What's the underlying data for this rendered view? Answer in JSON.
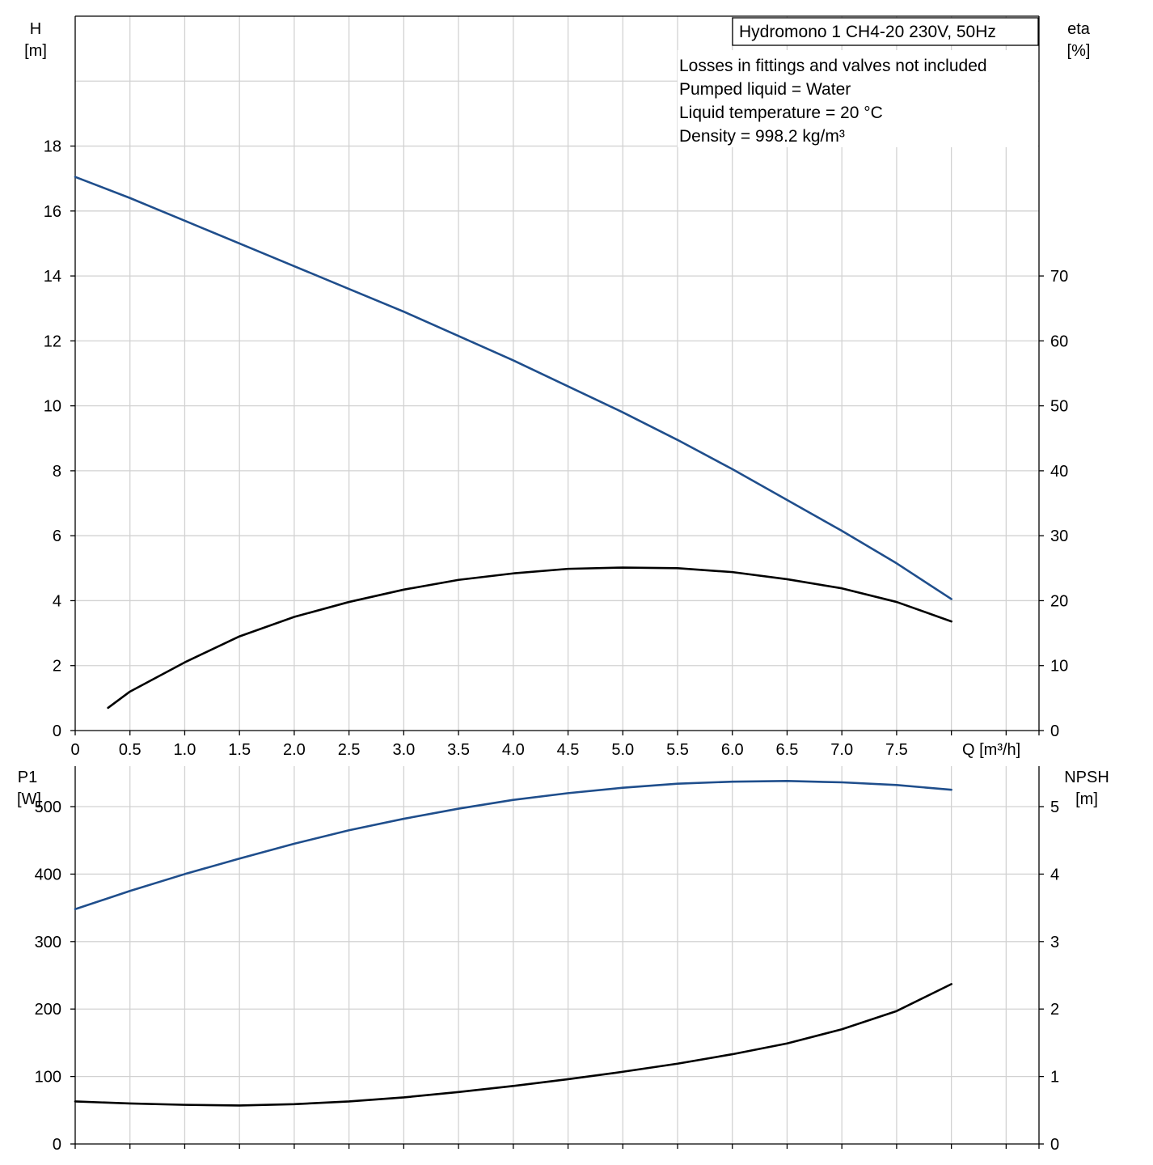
{
  "product_label": "Hydromono 1 CH4-20 230V, 50Hz",
  "info_lines": [
    "Losses in fittings and valves not included",
    "Pumped liquid = Water",
    "Liquid temperature = 20 °C",
    "Density = 998.2 kg/m³"
  ],
  "colors": {
    "head": "#1f4e8c",
    "efficiency": "#000000",
    "power": "#1f4e8c",
    "npsh": "#000000",
    "grid": "#d2d2d2"
  },
  "chart_data": [
    {
      "type": "line",
      "xlabel": "Q [m³/h]",
      "x_ticks": [
        "0",
        "0.5",
        "1.0",
        "1.5",
        "2.0",
        "2.5",
        "3.0",
        "3.5",
        "4.0",
        "4.5",
        "5.0",
        "5.5",
        "6.0",
        "6.5",
        "7.0",
        "7.5"
      ],
      "xlim": [
        0,
        8.8
      ],
      "y_left": {
        "label_top": "H",
        "label_unit": "[m]",
        "ticks": [
          0,
          2,
          4,
          6,
          8,
          10,
          12,
          14,
          16,
          18
        ],
        "ylim": [
          0,
          22
        ]
      },
      "y_right": {
        "label_top": "eta",
        "label_unit": "[%]",
        "ticks": [
          0,
          10,
          20,
          30,
          40,
          50,
          60,
          70
        ],
        "ylim": [
          0,
          110
        ]
      },
      "grid": true,
      "series": [
        {
          "axis": "left",
          "color": "#1f4e8c",
          "x": [
            0,
            0.5,
            1.0,
            1.5,
            2.0,
            2.5,
            3.0,
            3.5,
            4.0,
            4.5,
            5.0,
            5.5,
            6.0,
            6.5,
            7.0,
            7.5,
            8.0
          ],
          "y": [
            17.05,
            16.4,
            15.7,
            15.0,
            14.3,
            13.6,
            12.9,
            12.15,
            11.4,
            10.6,
            9.8,
            8.95,
            8.05,
            7.1,
            6.15,
            5.15,
            4.05
          ]
        },
        {
          "axis": "right",
          "color": "#000000",
          "x": [
            0.3,
            0.5,
            1.0,
            1.5,
            2.0,
            2.5,
            3.0,
            3.5,
            4.0,
            4.5,
            5.0,
            5.5,
            6.0,
            6.5,
            7.0,
            7.5,
            8.0
          ],
          "y": [
            3.5,
            6.0,
            10.5,
            14.5,
            17.5,
            19.8,
            21.7,
            23.2,
            24.2,
            24.9,
            25.1,
            25.0,
            24.4,
            23.3,
            21.9,
            19.8,
            16.8
          ]
        }
      ]
    },
    {
      "type": "line",
      "xlabel": "",
      "xlim": [
        0,
        8.8
      ],
      "y_left": {
        "label_top": "P1",
        "label_unit": "[W]",
        "ticks": [
          0,
          100,
          200,
          300,
          400,
          500
        ],
        "ylim": [
          0,
          560
        ]
      },
      "y_right": {
        "label_top": "NPSH",
        "label_unit": "[m]",
        "ticks": [
          0,
          1,
          2,
          3,
          4,
          5
        ],
        "ylim": [
          0,
          5.6
        ]
      },
      "grid": true,
      "series": [
        {
          "axis": "left",
          "color": "#1f4e8c",
          "x": [
            0,
            0.5,
            1.0,
            1.5,
            2.0,
            2.5,
            3.0,
            3.5,
            4.0,
            4.5,
            5.0,
            5.5,
            6.0,
            6.5,
            7.0,
            7.5,
            8.0
          ],
          "y": [
            348,
            375,
            400,
            423,
            445,
            465,
            482,
            497,
            510,
            520,
            528,
            534,
            537,
            538,
            536,
            532,
            525
          ]
        },
        {
          "axis": "right",
          "color": "#000000",
          "x": [
            0,
            0.5,
            1.0,
            1.5,
            2.0,
            2.5,
            3.0,
            3.5,
            4.0,
            4.5,
            5.0,
            5.5,
            6.0,
            6.5,
            7.0,
            7.5,
            8.0
          ],
          "y": [
            0.63,
            0.6,
            0.58,
            0.57,
            0.59,
            0.63,
            0.69,
            0.77,
            0.86,
            0.96,
            1.07,
            1.19,
            1.33,
            1.49,
            1.7,
            1.97,
            2.37
          ]
        }
      ]
    }
  ]
}
